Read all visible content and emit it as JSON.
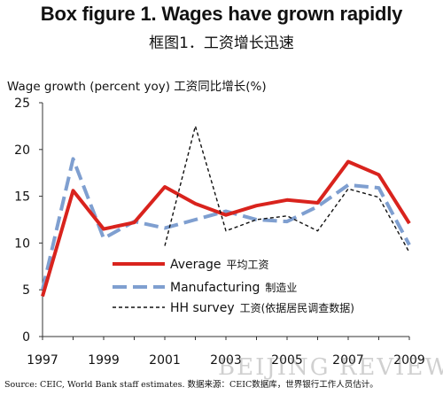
{
  "chart_data": {
    "type": "line",
    "title": "Box figure 1. Wages have grown rapidly",
    "subtitle": "框图1．工资增长迅速",
    "ylabel": "Wage growth (percent yoy) 工资同比增长(%)",
    "xlabel": "",
    "ylim": [
      0,
      25
    ],
    "xlim": [
      1997,
      2009
    ],
    "y_ticks": [
      0,
      5,
      10,
      15,
      20,
      25
    ],
    "x_ticks": [
      1997,
      1999,
      2001,
      2003,
      2005,
      2007,
      2009
    ],
    "grid": false,
    "legend_position": "lower-middle",
    "series": [
      {
        "name": "Average",
        "name_cn": "平均工资",
        "color": "#d9231d",
        "style": "solid",
        "x": [
          1997,
          1998,
          1999,
          2000,
          2001,
          2002,
          2003,
          2004,
          2005,
          2006,
          2007,
          2008,
          2009
        ],
        "values": [
          4.3,
          15.6,
          11.5,
          12.2,
          16.0,
          14.2,
          13.0,
          14.0,
          14.6,
          14.3,
          18.7,
          17.3,
          12.1
        ]
      },
      {
        "name": "Manufacturing",
        "name_cn": "制造业",
        "color": "#7f9fd0",
        "style": "dashed",
        "x": [
          1997,
          1998,
          1999,
          2000,
          2001,
          2002,
          2003,
          2004,
          2005,
          2006,
          2007,
          2008,
          2009
        ],
        "values": [
          5.0,
          19.0,
          10.5,
          12.3,
          11.6,
          12.5,
          13.4,
          12.5,
          12.3,
          13.9,
          16.2,
          15.9,
          9.8
        ]
      },
      {
        "name": "HH survey",
        "name_cn": "工资(依据居民调查数据)",
        "color": "#111111",
        "style": "dotted",
        "x": [
          2001,
          2002,
          2003,
          2004,
          2005,
          2006,
          2007,
          2008,
          2009
        ],
        "values": [
          9.7,
          22.5,
          11.3,
          12.5,
          12.9,
          11.3,
          15.8,
          14.9,
          9.0
        ]
      }
    ]
  },
  "source_note": "Source: CEIC, World Bank staff estimates.    数据来源：CEIC数据库，世界银行工作人员估计。",
  "watermark": "BEIJING REVIEW",
  "colors": {
    "average": "#d9231d",
    "manufacturing": "#7f9fd0",
    "hh_survey": "#111111"
  }
}
